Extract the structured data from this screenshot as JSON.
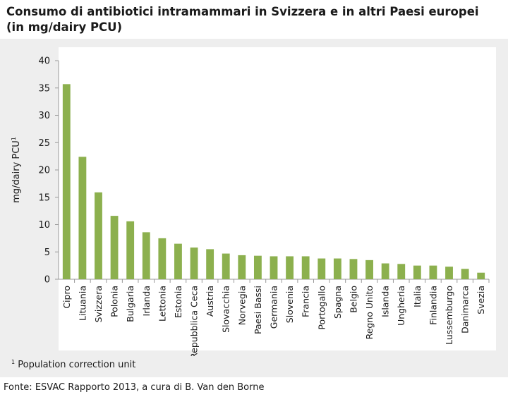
{
  "header": {
    "title_line1": "Consumo di antibiotici intramammari in Svizzera e in altri Paesi europei",
    "title_line2": "(in mg/dairy PCU)"
  },
  "footnote": {
    "marker": "1",
    "text": "Population correction unit"
  },
  "source": "Fonte: ESVAC Rapporto 2013, a cura di B. Van den Borne",
  "colors": {
    "bar": "#8cb04e",
    "panel": "#eeeeee",
    "plot": "#ffffff",
    "axis": "#999999"
  },
  "chart_data": {
    "type": "bar",
    "title": "Consumo di antibiotici intramammari in Svizzera e in altri Paesi europei (in mg/dairy PCU)",
    "xlabel": "",
    "ylabel": "mg/dairy PCU",
    "ylabel_superscript": "1",
    "ylim": [
      0,
      40
    ],
    "yticks": [
      0,
      5,
      10,
      15,
      20,
      25,
      30,
      35,
      40
    ],
    "grid": false,
    "legend": "none",
    "categories": [
      "Cipro",
      "Lituania",
      "Svizzera",
      "Polonia",
      "Bulgaria",
      "Irlanda",
      "Lettonia",
      "Estonia",
      "Repubblica Ceca",
      "Austria",
      "Slovacchia",
      "Norvegia",
      "Paesi Bassi",
      "Germania",
      "Slovenia",
      "Francia",
      "Portogallo",
      "Spagna",
      "Belgio",
      "Regno Unito",
      "Islanda",
      "Ungheria",
      "Italia",
      "Finlandia",
      "Lussemburgo",
      "Danimarca",
      "Svezia"
    ],
    "values": [
      35.7,
      22.4,
      15.9,
      11.6,
      10.6,
      8.6,
      7.5,
      6.5,
      5.8,
      5.5,
      4.7,
      4.4,
      4.3,
      4.2,
      4.2,
      4.2,
      3.8,
      3.8,
      3.7,
      3.5,
      2.9,
      2.8,
      2.5,
      2.5,
      2.3,
      1.9,
      1.2
    ]
  }
}
